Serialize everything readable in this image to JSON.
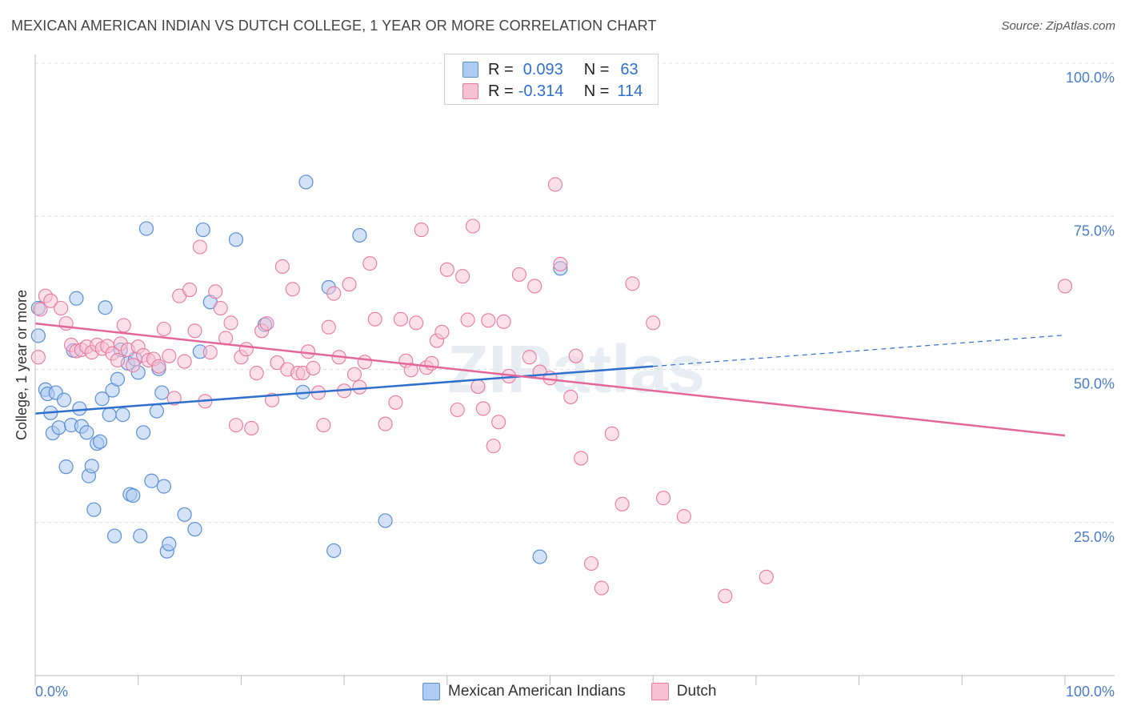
{
  "title": "MEXICAN AMERICAN INDIAN VS DUTCH COLLEGE, 1 YEAR OR MORE CORRELATION CHART",
  "source": "Source: ZipAtlas.com",
  "watermark": "ZIPatlas",
  "colors": {
    "blue": "#5b8fd6",
    "blue_fill": "#aecbf1",
    "blue_line": "#2f6fce",
    "pink": "#e9799f",
    "pink_fill": "#f7c1d4",
    "pink_line": "#e4679a",
    "tick_text": "#4a7cc9",
    "grid": "#dddddd"
  },
  "legend_top": {
    "rows": [
      {
        "r_label": "R =",
        "r_value": "0.093",
        "n_label": "N =",
        "n_value": "63"
      },
      {
        "r_label": "R =",
        "r_value": "-0.314",
        "n_label": "N =",
        "n_value": "114"
      }
    ]
  },
  "legend_bottom": [
    "Mexican American Indians",
    "Dutch"
  ],
  "chart_data": {
    "type": "scatter",
    "title": "MEXICAN AMERICAN INDIAN VS DUTCH COLLEGE, 1 YEAR OR MORE CORRELATION CHART",
    "xlabel": "",
    "ylabel": "College, 1 year or more",
    "xlim": [
      0,
      100
    ],
    "ylim": [
      0,
      100
    ],
    "x_tick_labels": [
      "0.0%",
      "100.0%"
    ],
    "y_tick_labels": [
      "25.0%",
      "50.0%",
      "75.0%",
      "100.0%"
    ],
    "y_ticks": [
      25,
      50,
      75,
      100
    ],
    "grid": true,
    "legend": "bottom",
    "series": [
      {
        "name": "Mexican American Indians",
        "R": 0.093,
        "N": 63,
        "trend": {
          "x0": 0,
          "y0": 42.8,
          "x1": 60,
          "y1": 50.5,
          "dashed_to_x": 100,
          "dashed_to_y": 55.6
        },
        "points": [
          [
            0.3,
            55.5
          ],
          [
            0.3,
            60
          ],
          [
            1,
            46.7
          ],
          [
            1.2,
            46
          ],
          [
            1.5,
            42.9
          ],
          [
            1.7,
            39.6
          ],
          [
            2,
            46.2
          ],
          [
            2.3,
            40.5
          ],
          [
            2.8,
            45
          ],
          [
            3,
            34.1
          ],
          [
            3.5,
            40.9
          ],
          [
            3.7,
            53.1
          ],
          [
            4,
            61.6
          ],
          [
            4.3,
            43.6
          ],
          [
            4.5,
            40.7
          ],
          [
            5,
            39.7
          ],
          [
            5.2,
            32.6
          ],
          [
            5.5,
            34.2
          ],
          [
            5.7,
            27.1
          ],
          [
            6,
            37.9
          ],
          [
            6.3,
            38.2
          ],
          [
            6.5,
            45.2
          ],
          [
            6.8,
            60.1
          ],
          [
            7.2,
            42.6
          ],
          [
            7.5,
            46.6
          ],
          [
            7.7,
            22.8
          ],
          [
            8,
            48.4
          ],
          [
            8.3,
            53.2
          ],
          [
            8.5,
            42.6
          ],
          [
            9,
            51
          ],
          [
            9.2,
            29.6
          ],
          [
            9.5,
            29.4
          ],
          [
            9.7,
            51.7
          ],
          [
            10,
            49.5
          ],
          [
            10.2,
            22.8
          ],
          [
            10.5,
            39.7
          ],
          [
            10.8,
            73
          ],
          [
            11.3,
            31.8
          ],
          [
            11.8,
            43.2
          ],
          [
            12,
            50.1
          ],
          [
            12.3,
            46.2
          ],
          [
            12.5,
            30.9
          ],
          [
            12.8,
            20.3
          ],
          [
            13,
            21.5
          ],
          [
            14.5,
            26.3
          ],
          [
            15.5,
            23.9
          ],
          [
            16,
            52.9
          ],
          [
            16.3,
            72.8
          ],
          [
            17,
            61
          ],
          [
            19.5,
            71.2
          ],
          [
            22.3,
            57.3
          ],
          [
            26,
            46.3
          ],
          [
            26.3,
            80.6
          ],
          [
            28.5,
            63.4
          ],
          [
            29,
            20.4
          ],
          [
            31.5,
            71.9
          ],
          [
            34,
            25.3
          ],
          [
            49,
            19.4
          ],
          [
            51,
            66.5
          ]
        ]
      },
      {
        "name": "Dutch",
        "R": -0.314,
        "N": 114,
        "trend": {
          "x0": 0,
          "y0": 57.5,
          "x1": 100,
          "y1": 39.2
        },
        "points": [
          [
            0.3,
            52
          ],
          [
            0.5,
            59.8
          ],
          [
            1,
            62
          ],
          [
            1.5,
            61.2
          ],
          [
            2.5,
            60
          ],
          [
            3,
            57.5
          ],
          [
            3.5,
            54
          ],
          [
            4,
            53
          ],
          [
            4.5,
            53.2
          ],
          [
            5,
            53.7
          ],
          [
            5.5,
            52.8
          ],
          [
            6,
            54
          ],
          [
            6.5,
            53.4
          ],
          [
            7,
            53.8
          ],
          [
            7.5,
            52.6
          ],
          [
            8,
            51.5
          ],
          [
            8.3,
            54.2
          ],
          [
            8.6,
            57.2
          ],
          [
            9,
            53.2
          ],
          [
            9.5,
            50.7
          ],
          [
            10,
            53.7
          ],
          [
            10.5,
            52.3
          ],
          [
            11,
            51.5
          ],
          [
            11.5,
            51.7
          ],
          [
            12,
            50.5
          ],
          [
            12.5,
            56.6
          ],
          [
            13,
            52.2
          ],
          [
            13.5,
            45.3
          ],
          [
            14,
            62
          ],
          [
            14.5,
            51.3
          ],
          [
            15,
            63
          ],
          [
            15.5,
            56.3
          ],
          [
            16,
            70
          ],
          [
            16.5,
            44.8
          ],
          [
            17,
            52.8
          ],
          [
            17.5,
            62.7
          ],
          [
            18,
            60
          ],
          [
            18.5,
            55.1
          ],
          [
            19,
            57.6
          ],
          [
            19.5,
            40.9
          ],
          [
            20,
            52
          ],
          [
            20.5,
            53.3
          ],
          [
            21,
            40.4
          ],
          [
            21.5,
            49.4
          ],
          [
            22,
            56.3
          ],
          [
            22.5,
            57.5
          ],
          [
            23,
            45
          ],
          [
            23.5,
            51.1
          ],
          [
            24,
            66.8
          ],
          [
            24.5,
            50
          ],
          [
            25,
            63.1
          ],
          [
            25.5,
            49.4
          ],
          [
            26,
            49.4
          ],
          [
            26.5,
            52.9
          ],
          [
            27,
            50.2
          ],
          [
            27.5,
            46.2
          ],
          [
            28,
            40.9
          ],
          [
            28.5,
            56.9
          ],
          [
            29,
            62.4
          ],
          [
            29.5,
            52
          ],
          [
            30,
            46.5
          ],
          [
            30.5,
            63.9
          ],
          [
            31,
            49.2
          ],
          [
            31.5,
            47.1
          ],
          [
            32,
            51.2
          ],
          [
            32.5,
            67.3
          ],
          [
            33,
            58.2
          ],
          [
            34,
            41.1
          ],
          [
            35,
            44.6
          ],
          [
            35.5,
            58.2
          ],
          [
            36,
            51.4
          ],
          [
            36.5,
            49.9
          ],
          [
            37,
            57.6
          ],
          [
            37.5,
            72.8
          ],
          [
            38,
            50.3
          ],
          [
            38.5,
            51
          ],
          [
            39,
            54.7
          ],
          [
            39.5,
            56.1
          ],
          [
            40,
            66.3
          ],
          [
            41,
            43.4
          ],
          [
            41.5,
            65.2
          ],
          [
            42,
            58.1
          ],
          [
            42.5,
            73.4
          ],
          [
            43,
            47.2
          ],
          [
            43.5,
            43.6
          ],
          [
            44,
            58
          ],
          [
            44.5,
            37.5
          ],
          [
            45,
            41.4
          ],
          [
            45.5,
            57.8
          ],
          [
            46,
            48.9
          ],
          [
            47,
            65.5
          ],
          [
            48,
            52
          ],
          [
            48.5,
            63.6
          ],
          [
            49,
            49.6
          ],
          [
            50,
            48.6
          ],
          [
            50.5,
            80.2
          ],
          [
            51,
            67.2
          ],
          [
            52,
            45.5
          ],
          [
            52.5,
            52.2
          ],
          [
            53,
            35.5
          ],
          [
            54,
            18.3
          ],
          [
            55,
            14.3
          ],
          [
            56,
            39.5
          ],
          [
            57,
            28
          ],
          [
            58,
            64
          ],
          [
            60,
            57.6
          ],
          [
            61,
            29
          ],
          [
            63,
            26
          ],
          [
            67,
            13
          ],
          [
            71,
            16.1
          ],
          [
            100,
            63.6
          ]
        ]
      }
    ]
  }
}
